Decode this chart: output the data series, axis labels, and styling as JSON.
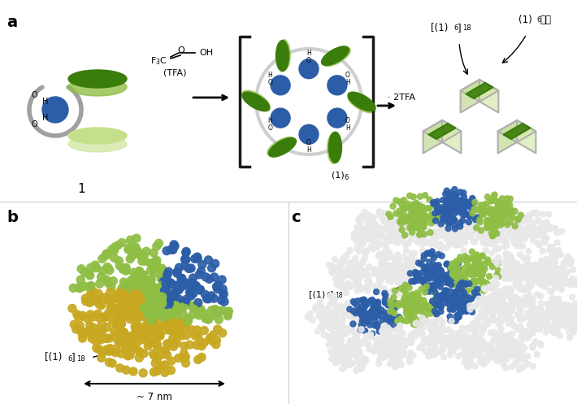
{
  "panel_a_label": "a",
  "panel_b_label": "b",
  "panel_c_label": "c",
  "tfa_text": "F₃C···OH\n(TFA)",
  "label_1": "1",
  "label_2TFA": "· 2TFA",
  "label_16": "(1)₆",
  "label_16_18": "[(1)₆]₁₈",
  "label_16_lattice": "(1)₆格子",
  "label_7nm": "~ 7 nm",
  "bg_color": "#ffffff",
  "dark_green": "#3a7d0a",
  "light_green": "#8fbe45",
  "lighter_green": "#c5e08a",
  "blue_color": "#2b5ea7",
  "gray_color": "#a0a0a0",
  "arrow_color": "#1a1a1a",
  "bracket_color": "#1a1a1a",
  "cube_frame_color": "#b0b0b0",
  "yellow_color": "#c8a820",
  "white_sphere": "#e8e8e8"
}
